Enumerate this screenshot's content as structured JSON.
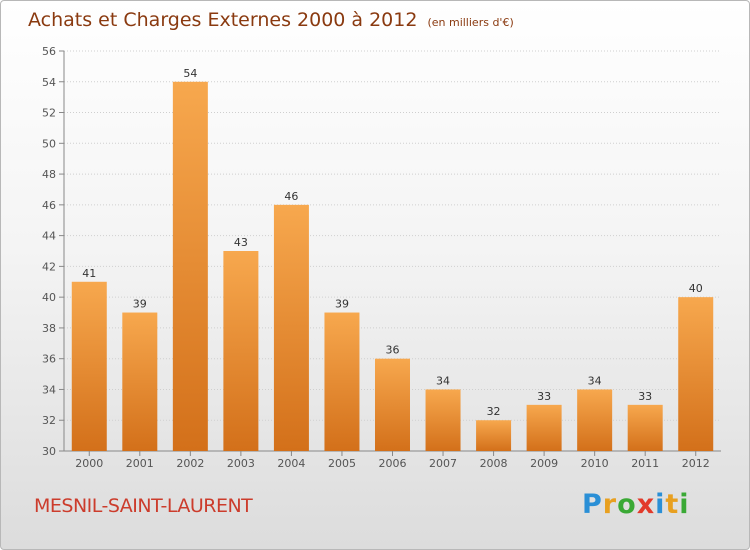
{
  "header": {
    "title": "Achats et Charges Externes 2000 à 2012",
    "subtitle": "(en milliers d'€)"
  },
  "footer": {
    "commune": "MESNIL-SAINT-LAURENT",
    "logo": {
      "letters": [
        "P",
        "r",
        "o",
        "x",
        "i",
        "t",
        "i"
      ],
      "colors": [
        "#2a8fd6",
        "#e8a020",
        "#3aa935",
        "#e23a2a",
        "#2a8fd6",
        "#e8a020",
        "#3aa935"
      ]
    }
  },
  "colors": {
    "bar_top": "#f7a84e",
    "bar_bottom": "#d3701a",
    "grid": "#cfcfcf"
  },
  "chart_data": {
    "type": "bar",
    "title": "Achats et Charges Externes 2000 à 2012",
    "subtitle": "(en milliers d'€)",
    "categories": [
      "2000",
      "2001",
      "2002",
      "2003",
      "2004",
      "2005",
      "2006",
      "2007",
      "2008",
      "2009",
      "2010",
      "2011",
      "2012"
    ],
    "values": [
      41,
      39,
      54,
      43,
      46,
      39,
      36,
      34,
      32,
      33,
      34,
      33,
      40
    ],
    "value_labels": [
      "41",
      "39",
      "54",
      "43",
      "46",
      "39",
      "36",
      "34",
      "32",
      "33",
      "34",
      "33",
      "40"
    ],
    "ylim": [
      30,
      56
    ],
    "yticks": [
      30,
      32,
      34,
      36,
      38,
      40,
      42,
      44,
      46,
      48,
      50,
      52,
      54,
      56
    ],
    "ytick_labels": [
      "30",
      "32",
      "34",
      "36",
      "38",
      "40",
      "42",
      "44",
      "46",
      "48",
      "50",
      "52",
      "54",
      "56"
    ],
    "xlabel": "",
    "ylabel": "",
    "grid": true,
    "legend": "none"
  }
}
